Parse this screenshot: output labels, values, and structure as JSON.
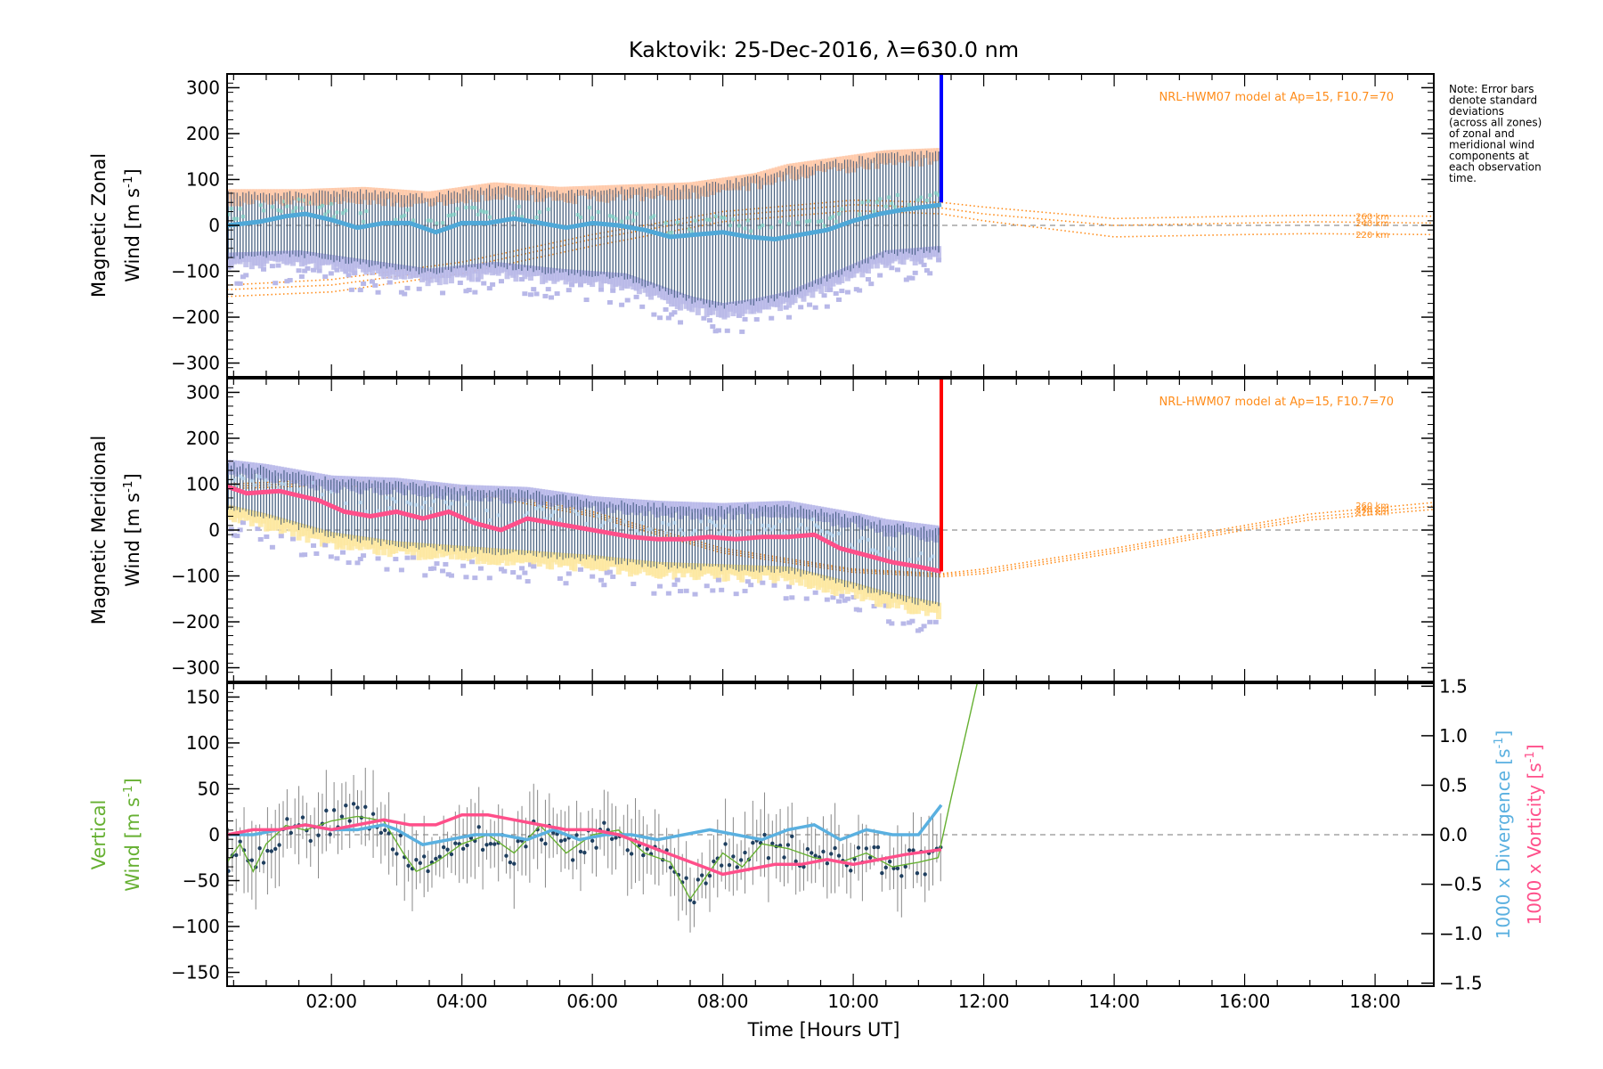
{
  "chart_data": {
    "type": "line",
    "title": "Kaktovik: 25-Dec-2016, λ=630.0 nm",
    "x_axis": {
      "label": "Time [Hours UT]",
      "range_hours": [
        0.4,
        18.9
      ],
      "tick_hours": [
        2,
        4,
        6,
        8,
        10,
        12,
        14,
        16,
        18
      ],
      "tick_labels": [
        "02:00",
        "04:00",
        "06:00",
        "08:00",
        "10:00",
        "12:00",
        "14:00",
        "16:00",
        "18:00"
      ]
    },
    "note": [
      "Note: Error bars",
      "denote standard",
      "deviations",
      "(across all zones)",
      "of zonal and",
      "meridional wind",
      "components at",
      "each observation",
      "time."
    ],
    "colors": {
      "zonal": "#4fa8d8",
      "zonal_bar": "#0000ff",
      "meridional": "#ff4f8a",
      "meridional_bar": "#ff0000",
      "vertical": "#66b032",
      "divergence": "#5ab0e0",
      "vorticity": "#ff4f8a",
      "model": "#ff8c1a",
      "errorbar": "#2c4a6e",
      "scatter_lilac": "#b8b8e8",
      "scatter_peach": "#ffc8a8",
      "scatter_yellow": "#fde8a0"
    },
    "panels": [
      {
        "name": "zonal",
        "ylabel_line1": "Magnetic Zonal",
        "ylabel_line2_main": "Wind [m s",
        "ylabel_line2_sup": "-1",
        "ylabel_line2_end": "]",
        "ylim": [
          -330,
          330
        ],
        "yticks": [
          -300,
          -200,
          -100,
          0,
          100,
          200,
          300
        ],
        "ytick_labels": [
          "−300",
          "−200",
          "−100",
          "0",
          "100",
          "200",
          "300"
        ],
        "model_label": "NRL-HWM07 model at Ap=15, F10.7=70",
        "model_alt_labels": [
          "260 km",
          "240 km",
          "220 km"
        ],
        "end_bar_hour": 11.35,
        "end_bar_range": [
          50,
          330
        ],
        "series": [
          {
            "id": "mean",
            "x": [
              0.4,
              0.9,
              1.3,
              1.6,
              2.0,
              2.4,
              2.8,
              3.2,
              3.6,
              4.0,
              4.4,
              4.8,
              5.2,
              5.6,
              6.0,
              6.4,
              6.8,
              7.2,
              7.6,
              8.0,
              8.4,
              8.8,
              9.2,
              9.6,
              10.0,
              10.4,
              10.8,
              11.35
            ],
            "y": [
              0,
              8,
              20,
              25,
              12,
              -5,
              5,
              5,
              -15,
              5,
              5,
              15,
              5,
              -5,
              5,
              0,
              -10,
              -25,
              -20,
              -15,
              -25,
              -30,
              -20,
              -10,
              10,
              25,
              35,
              45
            ]
          },
          {
            "id": "envelope_high",
            "x": [
              0.4,
              1.5,
              2.5,
              3.5,
              4.5,
              5.5,
              6.5,
              7.5,
              8.5,
              9.0,
              9.5,
              10.0,
              10.5,
              11.35
            ],
            "y": [
              75,
              75,
              80,
              70,
              90,
              80,
              85,
              90,
              110,
              130,
              140,
              150,
              160,
              165
            ]
          },
          {
            "id": "envelope_low",
            "x": [
              0.4,
              1.5,
              2.5,
              3.5,
              4.5,
              5.5,
              6.5,
              7.5,
              8.0,
              8.5,
              9.0,
              9.5,
              10.0,
              10.5,
              11.35
            ],
            "y": [
              -75,
              -70,
              -90,
              -110,
              -95,
              -110,
              -120,
              -170,
              -185,
              -175,
              -160,
              -130,
              -100,
              -70,
              -60
            ]
          }
        ],
        "model_curves": [
          {
            "alt": "260 km",
            "x": [
              0.4,
              2,
              4,
              6,
              8,
              10,
              11.35,
              12,
              14,
              16,
              17,
              18.9
            ],
            "y": [
              -130,
              -118,
              -80,
              -20,
              30,
              55,
              50,
              40,
              15,
              20,
              22,
              20
            ]
          },
          {
            "alt": "240 km",
            "x": [
              0.4,
              2,
              4,
              6,
              8,
              10,
              11.35,
              12,
              14,
              16,
              17,
              18.9
            ],
            "y": [
              -140,
              -130,
              -92,
              -30,
              20,
              45,
              38,
              25,
              0,
              5,
              8,
              5
            ]
          },
          {
            "alt": "220 km",
            "x": [
              0.4,
              2,
              4,
              6,
              8,
              10,
              11.35,
              12,
              14,
              16,
              17,
              18.9
            ],
            "y": [
              -155,
              -145,
              -105,
              -45,
              8,
              32,
              25,
              10,
              -25,
              -20,
              -18,
              -20
            ]
          }
        ]
      },
      {
        "name": "meridional",
        "ylabel_line1": "Magnetic Meridional",
        "ylabel_line2_main": "Wind [m s",
        "ylabel_line2_sup": "-1",
        "ylabel_line2_end": "]",
        "ylim": [
          -330,
          330
        ],
        "yticks": [
          -300,
          -200,
          -100,
          0,
          100,
          200,
          300
        ],
        "ytick_labels": [
          "−300",
          "−200",
          "−100",
          "0",
          "100",
          "200",
          "300"
        ],
        "model_label": "NRL-HWM07 model at Ap=15, F10.7=70",
        "model_alt_labels": [
          "260 km",
          "240 km",
          "220 km"
        ],
        "end_bar_hour": 11.35,
        "end_bar_range": [
          -90,
          330
        ],
        "series": [
          {
            "id": "mean",
            "x": [
              0.4,
              0.7,
              1.2,
              1.8,
              2.2,
              2.6,
              3.0,
              3.4,
              3.8,
              4.2,
              4.6,
              5.0,
              5.4,
              5.8,
              6.2,
              6.6,
              7.0,
              7.4,
              7.8,
              8.2,
              8.6,
              9.0,
              9.4,
              9.8,
              10.2,
              10.6,
              11.0,
              11.35
            ],
            "y": [
              95,
              80,
              85,
              65,
              40,
              30,
              40,
              25,
              40,
              15,
              0,
              25,
              15,
              5,
              -5,
              -15,
              -20,
              -20,
              -15,
              -20,
              -15,
              -15,
              -10,
              -40,
              -55,
              -70,
              -80,
              -90
            ]
          },
          {
            "id": "envelope_high",
            "x": [
              0.4,
              1.0,
              2.0,
              3.0,
              4.0,
              5.0,
              6.0,
              7.0,
              8.0,
              9.0,
              10.0,
              10.5,
              11.35
            ],
            "y": [
              150,
              140,
              115,
              110,
              95,
              90,
              70,
              60,
              55,
              60,
              35,
              20,
              5
            ]
          },
          {
            "id": "envelope_low",
            "x": [
              0.4,
              1.0,
              2.0,
              3.0,
              4.0,
              5.0,
              6.0,
              7.0,
              8.0,
              9.0,
              10.0,
              10.5,
              11.35
            ],
            "y": [
              40,
              20,
              -20,
              -40,
              -50,
              -60,
              -70,
              -85,
              -90,
              -95,
              -130,
              -150,
              -175
            ]
          }
        ],
        "model_curves": [
          {
            "alt": "260 km",
            "x": [
              0.4,
              2,
              4,
              6,
              8,
              10,
              11.35,
              12,
              14,
              16,
              17,
              18.9
            ],
            "y": [
              100,
              110,
              95,
              40,
              -40,
              -85,
              -95,
              -85,
              -40,
              10,
              35,
              60
            ]
          },
          {
            "alt": "240 km",
            "x": [
              0.4,
              2,
              4,
              6,
              8,
              10,
              11.35,
              12,
              14,
              16,
              17,
              18.9
            ],
            "y": [
              95,
              104,
              90,
              35,
              -45,
              -88,
              -98,
              -90,
              -45,
              5,
              28,
              52
            ]
          },
          {
            "alt": "220 km",
            "x": [
              0.4,
              2,
              4,
              6,
              8,
              10,
              11.35,
              12,
              14,
              16,
              17,
              18.9
            ],
            "y": [
              90,
              98,
              84,
              30,
              -50,
              -92,
              -102,
              -95,
              -50,
              0,
              22,
              45
            ]
          }
        ]
      },
      {
        "name": "vertical",
        "ylabel_line1": "Vertical",
        "ylabel_line2_main": "Wind [m s",
        "ylabel_line2_sup": "-1",
        "ylabel_line2_end": "]",
        "ylim": [
          -165,
          165
        ],
        "yticks": [
          -150,
          -100,
          -50,
          0,
          50,
          100,
          150
        ],
        "ytick_labels": [
          "−150",
          "−100",
          "−50",
          "0",
          "50",
          "100",
          "150"
        ],
        "y2lim": [
          -1.53,
          1.53
        ],
        "y2ticks": [
          -1.5,
          -1.0,
          -0.5,
          0.0,
          0.5,
          1.0,
          1.5
        ],
        "y2tick_labels": [
          "−1.5",
          "−1.0",
          "−0.5",
          "0.0",
          "0.5",
          "1.0",
          "1.5"
        ],
        "y2label_div_main": "1000 x Divergence [s",
        "y2label_vort_main": "1000 x Vorticity [s",
        "y2label_sup": "-1",
        "y2label_end": "]",
        "series": [
          {
            "id": "vertical",
            "x": [
              0.4,
              0.6,
              0.8,
              1.0,
              1.3,
              1.6,
              2.0,
              2.4,
              2.8,
              3.1,
              3.3,
              3.6,
              4.0,
              4.4,
              4.8,
              5.2,
              5.6,
              6.0,
              6.4,
              6.8,
              7.2,
              7.5,
              7.8,
              8.0,
              8.3,
              8.6,
              9.0,
              9.4,
              9.8,
              10.2,
              10.6,
              11.0,
              11.3,
              11.5,
              11.9
            ],
            "y": [
              -30,
              -10,
              -40,
              -10,
              10,
              5,
              15,
              20,
              15,
              -20,
              -40,
              -30,
              -10,
              0,
              -20,
              10,
              -20,
              0,
              5,
              -20,
              -30,
              -70,
              -40,
              -20,
              -35,
              -10,
              -15,
              -25,
              -30,
              -20,
              -35,
              -30,
              -25,
              40,
              165
            ]
          },
          {
            "id": "divergence",
            "x": [
              0.4,
              0.8,
              1.2,
              1.6,
              2.0,
              2.4,
              2.8,
              3.0,
              3.4,
              3.8,
              4.2,
              4.6,
              5.0,
              5.4,
              5.8,
              6.2,
              6.6,
              7.0,
              7.4,
              7.8,
              8.2,
              8.6,
              9.0,
              9.4,
              9.8,
              10.2,
              10.6,
              11.0,
              11.35
            ],
            "y": [
              0.0,
              0.0,
              0.05,
              0.1,
              0.05,
              0.05,
              0.1,
              0.05,
              -0.1,
              -0.05,
              0.0,
              0.0,
              -0.05,
              0.05,
              -0.05,
              0.0,
              0.0,
              -0.05,
              0.0,
              0.05,
              0.0,
              -0.05,
              0.05,
              0.1,
              -0.05,
              0.05,
              0.0,
              0.0,
              0.3
            ]
          },
          {
            "id": "vorticity",
            "x": [
              0.4,
              0.8,
              1.2,
              1.6,
              2.0,
              2.4,
              2.8,
              3.2,
              3.6,
              4.0,
              4.4,
              4.8,
              5.2,
              5.6,
              6.0,
              6.4,
              6.8,
              7.2,
              7.6,
              8.0,
              8.4,
              8.8,
              9.2,
              9.6,
              10.0,
              10.4,
              10.8,
              11.35
            ],
            "y": [
              0.0,
              0.05,
              0.05,
              0.1,
              0.05,
              0.1,
              0.15,
              0.1,
              0.1,
              0.2,
              0.2,
              0.15,
              0.1,
              0.05,
              0.05,
              0.0,
              -0.1,
              -0.2,
              -0.3,
              -0.4,
              -0.35,
              -0.3,
              -0.3,
              -0.25,
              -0.3,
              -0.25,
              -0.2,
              -0.15
            ]
          }
        ]
      }
    ]
  }
}
